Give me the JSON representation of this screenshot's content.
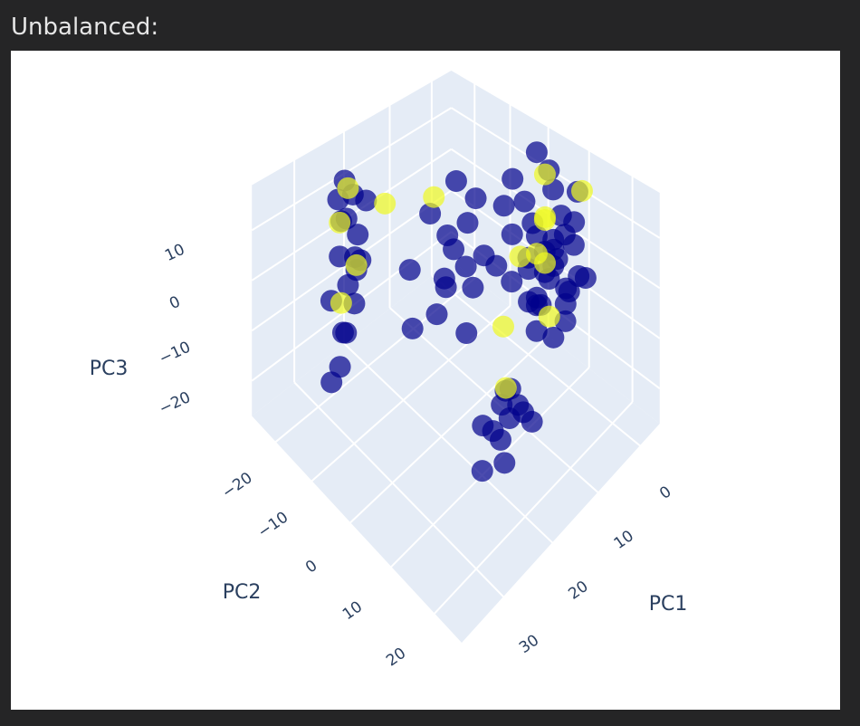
{
  "header": "Unbalanced:",
  "chart_data": {
    "type": "scatter3d",
    "xlabel": "PC1",
    "ylabel": "PC2",
    "zlabel": "PC3",
    "xlim": [
      -5,
      38
    ],
    "ylim": [
      -27,
      26
    ],
    "zlim": [
      -27,
      19
    ],
    "xticks": [
      0,
      10,
      20,
      30
    ],
    "yticks": [
      {
        "value": -20,
        "label": "−20"
      },
      {
        "value": -10,
        "label": "−10"
      },
      0,
      10,
      20
    ],
    "zticks": [
      {
        "value": -20,
        "label": "−20"
      },
      {
        "value": -10,
        "label": "−10"
      },
      0,
      10
    ],
    "grid": true,
    "series": [
      {
        "color": "#00008b",
        "x": [
          24,
          23,
          25,
          24,
          22,
          25,
          23,
          24,
          26,
          22,
          25,
          23,
          27,
          21,
          24,
          26,
          20,
          28,
          10,
          12,
          8,
          14,
          11,
          9,
          13,
          7,
          15,
          12,
          16,
          10,
          6,
          14,
          18,
          17,
          0,
          2,
          -2,
          4,
          1,
          5,
          -1,
          3,
          6,
          0,
          2,
          4,
          -3,
          1,
          5,
          3,
          -1,
          2,
          6,
          0,
          4,
          1,
          -2,
          3,
          5,
          2,
          0,
          7,
          8,
          6,
          -3,
          7,
          4,
          8,
          2,
          -1,
          15,
          16,
          14,
          17,
          13,
          18,
          15,
          12,
          19,
          16,
          20,
          11
        ],
        "y": [
          -21,
          -20,
          -19,
          -22,
          -20,
          -21,
          -19,
          -20,
          -22,
          -21,
          -20,
          -22,
          -18,
          -19,
          -18,
          -20,
          -22,
          -19,
          -5,
          -8,
          -3,
          -6,
          -10,
          -4,
          -2,
          -7,
          -9,
          -3,
          -6,
          -8,
          -2,
          -4,
          -10,
          -12,
          5,
          8,
          10,
          3,
          12,
          6,
          7,
          9,
          2,
          11,
          4,
          10,
          6,
          8,
          5,
          12,
          3,
          7,
          9,
          4,
          6,
          10,
          8,
          5,
          11,
          2,
          9,
          7,
          4,
          12,
          11,
          1,
          0,
          10,
          14,
          1,
          10,
          12,
          8,
          11,
          9,
          13,
          7,
          11,
          9,
          14,
          10,
          12
        ],
        "z": [
          14,
          11,
          8,
          5,
          2,
          -1,
          -4,
          -7,
          -10,
          -13,
          -16,
          -19,
          -20,
          9,
          0,
          12,
          -6,
          -23,
          5,
          2,
          -2,
          -6,
          -9,
          10,
          0,
          -12,
          8,
          -15,
          -10,
          12,
          -5,
          3,
          -14,
          -4,
          15,
          14,
          12,
          10,
          9,
          8,
          6,
          5,
          4,
          3,
          2,
          1,
          0,
          -1,
          -2,
          -3,
          -4,
          -5,
          -6,
          -7,
          -8,
          -9,
          -10,
          -11,
          -12,
          -13,
          -14,
          3,
          -3,
          7,
          -6,
          10,
          13,
          -9,
          0,
          16,
          -15,
          -18,
          -20,
          -22,
          -17,
          -24,
          -25,
          -21,
          -19,
          -14,
          -26,
          -23
        ]
      },
      {
        "color": "#f0f921",
        "x": [
          24,
          25,
          23,
          24,
          20,
          15,
          2,
          5,
          0,
          3,
          6,
          1,
          7,
          14,
          9,
          -1
        ],
        "y": [
          -20,
          -21,
          -19,
          -22,
          -15,
          -8,
          6,
          9,
          4,
          7,
          11,
          3,
          5,
          9,
          3,
          12
        ],
        "z": [
          13,
          6,
          -3,
          -12,
          10,
          12,
          16,
          11,
          4,
          -1,
          -7,
          -3,
          2,
          -16,
          -12,
          14
        ]
      }
    ]
  }
}
